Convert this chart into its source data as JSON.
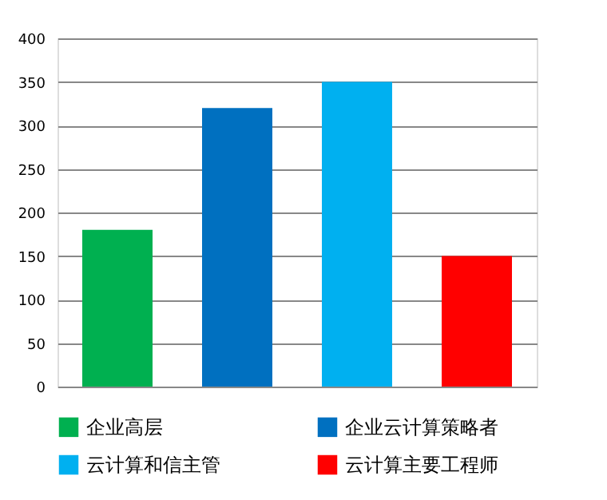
{
  "chart_data": {
    "type": "bar",
    "categories": [
      null,
      null,
      null,
      null
    ],
    "series": [
      {
        "name": "企业高层",
        "color": "#00b050",
        "values": [
          180,
          null,
          null,
          null
        ]
      },
      {
        "name": "企业云计算策略者",
        "color": "#0070c0",
        "values": [
          null,
          320,
          null,
          null
        ]
      },
      {
        "name": "云计算和信主管",
        "color": "#00b0f0",
        "values": [
          null,
          null,
          350,
          null
        ]
      },
      {
        "name": "云计算主要工程师",
        "color": "#ff0000",
        "values": [
          null,
          null,
          null,
          150
        ]
      }
    ],
    "ylim": [
      0,
      400
    ],
    "yticks": [
      0,
      50,
      100,
      150,
      200,
      250,
      300,
      350,
      400
    ],
    "grid": "y",
    "legend": "bottom",
    "tick_labels": "y"
  }
}
